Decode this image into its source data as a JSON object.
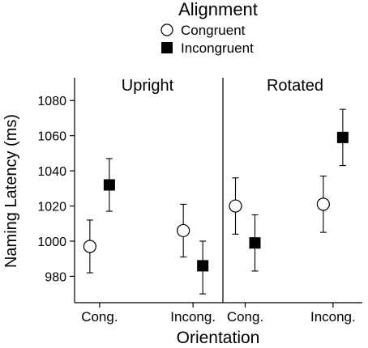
{
  "chart_data": {
    "type": "scatter",
    "legend": {
      "title": "Alignment",
      "placement": "top-center",
      "entries": [
        {
          "name": "Congruent",
          "marker": "open-circle"
        },
        {
          "name": "Incongruent",
          "marker": "filled-square"
        }
      ]
    },
    "ylabel": "Naming Latency (ms)",
    "xlabel": "Orientation",
    "ylim": [
      965,
      1093
    ],
    "yticks": [
      980,
      1000,
      1020,
      1040,
      1060,
      1080
    ],
    "categories": [
      "Cong.",
      "Incong."
    ],
    "grid": false,
    "panels": [
      {
        "title": "Upright",
        "series": [
          {
            "name": "Congruent",
            "values": [
              997,
              1006
            ],
            "error_low": [
              982,
              991
            ],
            "error_high": [
              1012,
              1021
            ]
          },
          {
            "name": "Incongruent",
            "values": [
              1032,
              986
            ],
            "error_low": [
              1017,
              970
            ],
            "error_high": [
              1047,
              1000
            ]
          }
        ]
      },
      {
        "title": "Rotated",
        "series": [
          {
            "name": "Congruent",
            "values": [
              1020,
              1021
            ],
            "error_low": [
              1004,
              1005
            ],
            "error_high": [
              1036,
              1037
            ]
          },
          {
            "name": "Incongruent",
            "values": [
              999,
              1059
            ],
            "error_low": [
              983,
              1043
            ],
            "error_high": [
              1015,
              1075
            ]
          }
        ]
      }
    ]
  },
  "colors": {
    "axis": "#000000",
    "marker_fill_open": "#ffffff",
    "marker_fill_solid": "#000000"
  }
}
